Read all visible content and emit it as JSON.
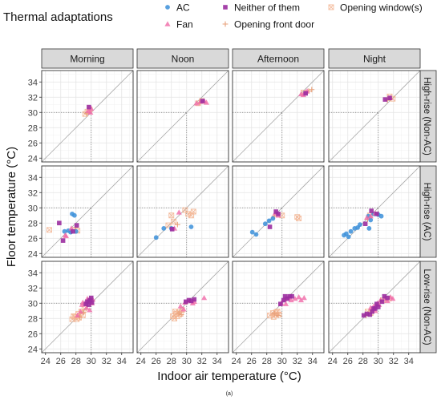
{
  "chart_data": {
    "type": "scatter",
    "title": "",
    "xlabel": "Indoor air temperature (°C)",
    "ylabel": "Floor temperature (°C)",
    "caption": "(a)",
    "xlim": [
      23.5,
      35.5
    ],
    "ylim": [
      23.5,
      35.5
    ],
    "major_ticks": [
      24,
      26,
      28,
      30,
      32,
      34
    ],
    "tick_labels": [
      "24",
      "26",
      "28",
      "30",
      "32",
      "34"
    ],
    "reference_line": "y = x",
    "dotted_line_y": 30,
    "grid": true,
    "legend": {
      "title": "Thermal adaptations",
      "position": "top",
      "entries": [
        {
          "key": "ac",
          "label": "AC",
          "color": "#3b8fd9",
          "shape": "circle"
        },
        {
          "key": "fan",
          "label": "Fan",
          "color": "#f06aa8",
          "shape": "triangle"
        },
        {
          "key": "neither",
          "label": "Neither of them",
          "color": "#9b2da0",
          "shape": "square"
        },
        {
          "key": "front_door",
          "label": "Opening front door",
          "color": "#e8a07a",
          "shape": "plus"
        },
        {
          "key": "window",
          "label": "Opening window(s)",
          "color": "#f2b28e",
          "shape": "square-cross"
        }
      ]
    },
    "columns": [
      "Morning",
      "Noon",
      "Afternoon",
      "Night"
    ],
    "rows": [
      "High-rise (Non-AC)",
      "High-rise (AC)",
      "Low-rise (Non-AC)"
    ],
    "panels": [
      [
        {
          "window": [
            [
              29.2,
              29.8
            ],
            [
              29.5,
              30.1
            ],
            [
              29.8,
              30.4
            ]
          ],
          "fan": [
            [
              30.0,
              30.5
            ],
            [
              29.6,
              30.2
            ],
            [
              29.9,
              30.0
            ]
          ],
          "neither": [
            [
              29.7,
              30.7
            ]
          ],
          "front_door": [
            [
              29.4,
              29.9
            ]
          ]
        },
        {
          "window": [
            [
              31.5,
              31.2
            ],
            [
              32.0,
              31.5
            ]
          ],
          "fan": [
            [
              31.8,
              31.4
            ],
            [
              32.3,
              31.5
            ],
            [
              32.6,
              31.3
            ],
            [
              31.3,
              31.2
            ]
          ],
          "neither": [
            [
              32.1,
              31.5
            ]
          ],
          "front_door": [
            [
              31.7,
              31.3
            ]
          ]
        },
        {
          "window": [
            [
              32.8,
              32.6
            ]
          ],
          "fan": [
            [
              32.5,
              32.4
            ],
            [
              33.0,
              32.6
            ],
            [
              33.3,
              32.8
            ],
            [
              32.8,
              32.3
            ]
          ],
          "neither": [
            [
              33.1,
              32.5
            ]
          ],
          "front_door": [
            [
              33.5,
              32.8
            ],
            [
              33.9,
              33.0
            ]
          ]
        },
        {
          "window": [
            [
              31.5,
              32.1
            ],
            [
              31.9,
              31.8
            ]
          ],
          "fan": [
            [
              31.6,
              31.9
            ]
          ],
          "neither": [
            [
              30.9,
              31.7
            ],
            [
              31.5,
              31.9
            ]
          ],
          "front_door": [
            [
              31.2,
              31.6
            ]
          ]
        }
      ],
      [
        {
          "ac": [
            [
              26.5,
              26.9
            ],
            [
              27.0,
              27.0
            ],
            [
              27.5,
              29.2
            ],
            [
              28.0,
              26.9
            ],
            [
              27.8,
              29.0
            ],
            [
              27.3,
              26.8
            ]
          ],
          "fan": [
            [
              26.7,
              26.3
            ],
            [
              27.4,
              27.3
            ],
            [
              26.6,
              26.4
            ]
          ],
          "neither": [
            [
              25.8,
              28.0
            ],
            [
              26.3,
              25.7
            ],
            [
              27.6,
              26.9
            ],
            [
              28.1,
              27.7
            ]
          ],
          "window": [
            [
              24.5,
              27.1
            ],
            [
              28.2,
              27.0
            ]
          ],
          "front_door": [
            [
              27.9,
              27.4
            ]
          ]
        },
        {
          "ac": [
            [
              26.0,
              26.1
            ],
            [
              27.0,
              27.3
            ],
            [
              28.0,
              27.3
            ],
            [
              30.6,
              27.5
            ]
          ],
          "fan": [
            [
              28.4,
              27.3
            ],
            [
              29.0,
              29.4
            ]
          ],
          "neither": [
            [
              28.1,
              27.2
            ]
          ],
          "window": [
            [
              27.6,
              27.7
            ],
            [
              28.0,
              29.0
            ],
            [
              28.3,
              28.2
            ],
            [
              29.8,
              29.7
            ],
            [
              30.2,
              29.2
            ],
            [
              30.6,
              29.0
            ],
            [
              30.9,
              29.5
            ]
          ],
          "front_door": [
            [
              28.8,
              27.8
            ]
          ]
        },
        {
          "ac": [
            [
              26.1,
              26.8
            ],
            [
              26.6,
              26.5
            ],
            [
              27.8,
              27.9
            ],
            [
              28.3,
              28.3
            ],
            [
              28.8,
              28.6
            ]
          ],
          "fan": [
            [
              29.1,
              29.3
            ],
            [
              29.5,
              29.0
            ]
          ],
          "neither": [
            [
              28.4,
              27.5
            ],
            [
              29.2,
              29.5
            ],
            [
              29.5,
              29.2
            ]
          ],
          "window": [
            [
              32.0,
              28.8
            ],
            [
              32.2,
              28.6
            ],
            [
              30.0,
              29.0
            ]
          ],
          "front_door": [
            [
              29.0,
              28.9
            ]
          ]
        },
        {
          "ac": [
            [
              25.5,
              26.4
            ],
            [
              25.8,
              26.6
            ],
            [
              26.1,
              26.2
            ],
            [
              26.4,
              26.9
            ],
            [
              26.9,
              27.3
            ],
            [
              27.3,
              27.4
            ],
            [
              27.6,
              27.8
            ],
            [
              28.7,
              28.9
            ],
            [
              29.0,
              28.4
            ],
            [
              29.4,
              29.2
            ],
            [
              30.0,
              29.1
            ],
            [
              30.4,
              28.9
            ],
            [
              28.8,
              27.3
            ]
          ],
          "fan": [
            [
              28.5,
              28.7
            ],
            [
              29.0,
              28.9
            ],
            [
              29.6,
              29.3
            ]
          ],
          "neither": [
            [
              28.3,
              27.9
            ],
            [
              29.1,
              29.6
            ],
            [
              29.8,
              29.2
            ]
          ],
          "window": [
            [
              28.9,
              29.0
            ]
          ],
          "front_door": [
            [
              28.6,
              28.5
            ]
          ]
        }
      ],
      [
        {
          "fan": [
            [
              28.8,
              29.8
            ],
            [
              29.2,
              30.0
            ],
            [
              29.6,
              30.3
            ],
            [
              29.9,
              30.6
            ],
            [
              30.1,
              30.0
            ],
            [
              29.4,
              29.4
            ],
            [
              28.6,
              28.9
            ],
            [
              28.2,
              28.4
            ],
            [
              29.8,
              29.1
            ],
            [
              30.2,
              30.5
            ],
            [
              28.9,
              30.1
            ],
            [
              29.5,
              30.6
            ]
          ],
          "neither": [
            [
              29.5,
              30.2
            ],
            [
              29.8,
              30.4
            ],
            [
              30.0,
              30.7
            ],
            [
              30.1,
              30.1
            ],
            [
              29.7,
              29.8
            ],
            [
              29.3,
              29.9
            ]
          ],
          "window": [
            [
              27.5,
              27.9
            ],
            [
              27.9,
              28.2
            ],
            [
              28.3,
              28.6
            ],
            [
              28.7,
              28.9
            ],
            [
              29.1,
              29.3
            ],
            [
              27.7,
              28.3
            ],
            [
              28.1,
              27.9
            ],
            [
              28.4,
              28.1
            ],
            [
              28.9,
              28.4
            ]
          ],
          "front_door": [
            [
              28.5,
              28.2
            ],
            [
              29.0,
              28.8
            ]
          ]
        },
        {
          "fan": [
            [
              29.2,
              29.6
            ],
            [
              29.8,
              30.1
            ],
            [
              30.4,
              30.3
            ],
            [
              30.8,
              30.0
            ],
            [
              31.0,
              30.2
            ],
            [
              32.3,
              30.7
            ],
            [
              29.6,
              29.2
            ]
          ],
          "neither": [
            [
              29.9,
              30.2
            ],
            [
              30.3,
              30.4
            ],
            [
              30.6,
              30.3
            ],
            [
              31.0,
              30.5
            ]
          ],
          "window": [
            [
              28.2,
              28.3
            ],
            [
              28.6,
              28.6
            ],
            [
              29.0,
              28.8
            ],
            [
              29.4,
              29.1
            ],
            [
              28.8,
              28.3
            ],
            [
              28.4,
              28.0
            ],
            [
              29.2,
              28.6
            ],
            [
              28.5,
              28.9
            ]
          ],
          "front_door": [
            [
              29.0,
              28.7
            ],
            [
              29.3,
              28.5
            ]
          ]
        },
        {
          "fan": [
            [
              29.9,
              30.0
            ],
            [
              30.3,
              30.5
            ],
            [
              30.8,
              30.7
            ],
            [
              31.2,
              30.4
            ],
            [
              31.7,
              30.6
            ],
            [
              32.2,
              30.8
            ],
            [
              32.5,
              30.4
            ],
            [
              32.9,
              30.7
            ],
            [
              30.5,
              29.9
            ]
          ],
          "neither": [
            [
              30.2,
              30.4
            ],
            [
              30.4,
              30.9
            ],
            [
              30.7,
              30.6
            ],
            [
              31.0,
              30.9
            ],
            [
              31.3,
              30.9
            ],
            [
              29.8,
              29.9
            ]
          ],
          "window": [
            [
              28.4,
              28.4
            ],
            [
              28.8,
              28.7
            ],
            [
              29.1,
              28.5
            ],
            [
              29.4,
              28.9
            ],
            [
              28.9,
              28.2
            ],
            [
              29.6,
              28.5
            ],
            [
              29.2,
              28.8
            ]
          ],
          "front_door": [
            [
              29.0,
              28.6
            ],
            [
              29.5,
              28.4
            ]
          ]
        },
        {
          "fan": [
            [
              29.0,
              29.4
            ],
            [
              29.4,
              29.6
            ],
            [
              29.9,
              30.0
            ],
            [
              30.3,
              30.4
            ],
            [
              30.8,
              30.6
            ],
            [
              31.2,
              30.3
            ],
            [
              31.6,
              30.8
            ],
            [
              31.9,
              30.6
            ],
            [
              30.1,
              29.8
            ],
            [
              29.6,
              29.0
            ]
          ],
          "neither": [
            [
              28.1,
              28.4
            ],
            [
              28.5,
              28.6
            ],
            [
              28.9,
              28.5
            ],
            [
              29.2,
              28.9
            ],
            [
              29.6,
              29.3
            ],
            [
              30.0,
              29.5
            ],
            [
              30.5,
              30.2
            ],
            [
              30.8,
              30.9
            ],
            [
              31.2,
              30.7
            ],
            [
              29.8,
              29.9
            ],
            [
              29.4,
              29.3
            ]
          ],
          "window": [
            [
              28.6,
              28.9
            ],
            [
              29.0,
              28.7
            ],
            [
              30.6,
              30.4
            ],
            [
              31.4,
              30.6
            ]
          ],
          "front_door": [
            [
              28.4,
              28.4
            ],
            [
              29.1,
              29.1
            ]
          ]
        }
      ]
    ]
  }
}
